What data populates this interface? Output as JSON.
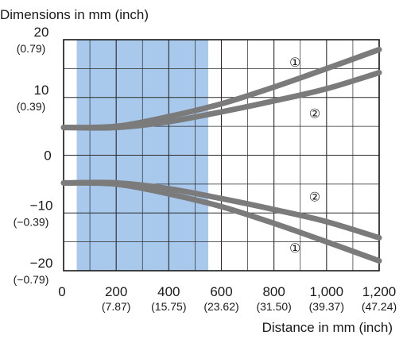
{
  "chart_data": {
    "type": "line",
    "title": "",
    "ylabel": "Dimensions in mm (inch)",
    "xlabel": "Distance in mm (inch)",
    "xlim": [
      0,
      1200
    ],
    "ylim": [
      -20,
      20
    ],
    "grid": true,
    "x_major_ticks": [
      {
        "value": 0,
        "label": "0",
        "sublabel": ""
      },
      {
        "value": 200,
        "label": "200",
        "sublabel": "(7.87)"
      },
      {
        "value": 400,
        "label": "400",
        "sublabel": "(15.75)"
      },
      {
        "value": 600,
        "label": "600",
        "sublabel": "(23.62)"
      },
      {
        "value": 800,
        "label": "800",
        "sublabel": "(31.50)"
      },
      {
        "value": 1000,
        "label": "1,000",
        "sublabel": "(39.37)"
      },
      {
        "value": 1200,
        "label": "1,200",
        "sublabel": "(47.24)"
      }
    ],
    "x_minor_ticks": [
      100,
      300,
      500,
      700,
      900,
      1100
    ],
    "y_major_ticks": [
      {
        "value": 20,
        "label": "20",
        "sublabel": "(0.79)"
      },
      {
        "value": 10,
        "label": "10",
        "sublabel": "(0.39)"
      },
      {
        "value": 0,
        "label": "0",
        "sublabel": ""
      },
      {
        "value": -10,
        "label": "−10",
        "sublabel": "(−0.39)"
      },
      {
        "value": -20,
        "label": "−20",
        "sublabel": "(−0.79)"
      }
    ],
    "y_minor_ticks": [
      15,
      5,
      -5,
      -15
    ],
    "highlight_region": {
      "x_start": 50,
      "x_end": 550,
      "color": "#a8c8ec"
    },
    "series_color": "#7b7b7b",
    "series": [
      {
        "marker": "①",
        "x": [
          0,
          200,
          400,
          600,
          800,
          1000,
          1200
        ],
        "y": [
          4.8,
          5.0,
          6.7,
          8.9,
          11.8,
          15.0,
          18.3
        ]
      },
      {
        "marker": "②",
        "x": [
          0,
          200,
          400,
          600,
          800,
          1000,
          1200
        ],
        "y": [
          4.8,
          4.8,
          5.8,
          7.5,
          9.4,
          11.5,
          14.3
        ]
      },
      {
        "marker": "②",
        "x": [
          0,
          200,
          400,
          600,
          800,
          1000,
          1200
        ],
        "y": [
          -4.8,
          -4.8,
          -5.8,
          -7.5,
          -9.4,
          -11.5,
          -14.3
        ]
      },
      {
        "marker": "①",
        "x": [
          0,
          200,
          400,
          600,
          800,
          1000,
          1200
        ],
        "y": [
          -4.8,
          -5.0,
          -6.7,
          -8.9,
          -11.8,
          -15.0,
          -18.3
        ]
      }
    ],
    "annotations": [
      {
        "text": "①",
        "x": 880,
        "y": 16.1
      },
      {
        "text": "②",
        "x": 955,
        "y": 7.2
      },
      {
        "text": "②",
        "x": 955,
        "y": -7.2
      },
      {
        "text": "①",
        "x": 880,
        "y": -16.1
      }
    ]
  }
}
